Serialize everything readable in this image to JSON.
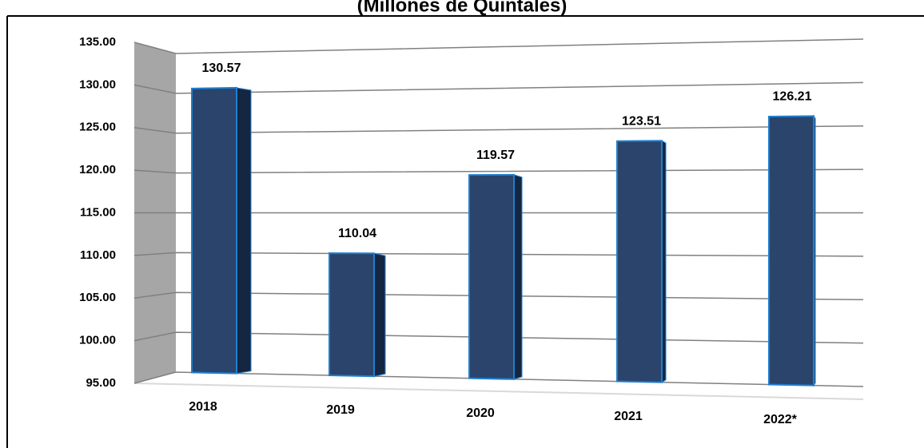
{
  "chart_data": {
    "type": "bar3d",
    "title": "(Millones de Quintales)",
    "categories": [
      "2018",
      "2019",
      "2020",
      "2021",
      "2022*"
    ],
    "values": [
      130.57,
      110.04,
      119.57,
      123.51,
      126.21
    ],
    "color": "#2a446b",
    "ylim": [
      95,
      135
    ],
    "yticks": [
      {
        "value": 95,
        "label": "95.00"
      },
      {
        "value": 100,
        "label": "100.00"
      },
      {
        "value": 105,
        "label": "105.00"
      },
      {
        "value": 110,
        "label": "110.00"
      },
      {
        "value": 115,
        "label": "115.00"
      },
      {
        "value": 120,
        "label": "120.00"
      },
      {
        "value": 125,
        "label": "125.00"
      },
      {
        "value": 130,
        "label": "130.00"
      },
      {
        "value": 135,
        "label": "135.00"
      }
    ],
    "grid": true
  }
}
